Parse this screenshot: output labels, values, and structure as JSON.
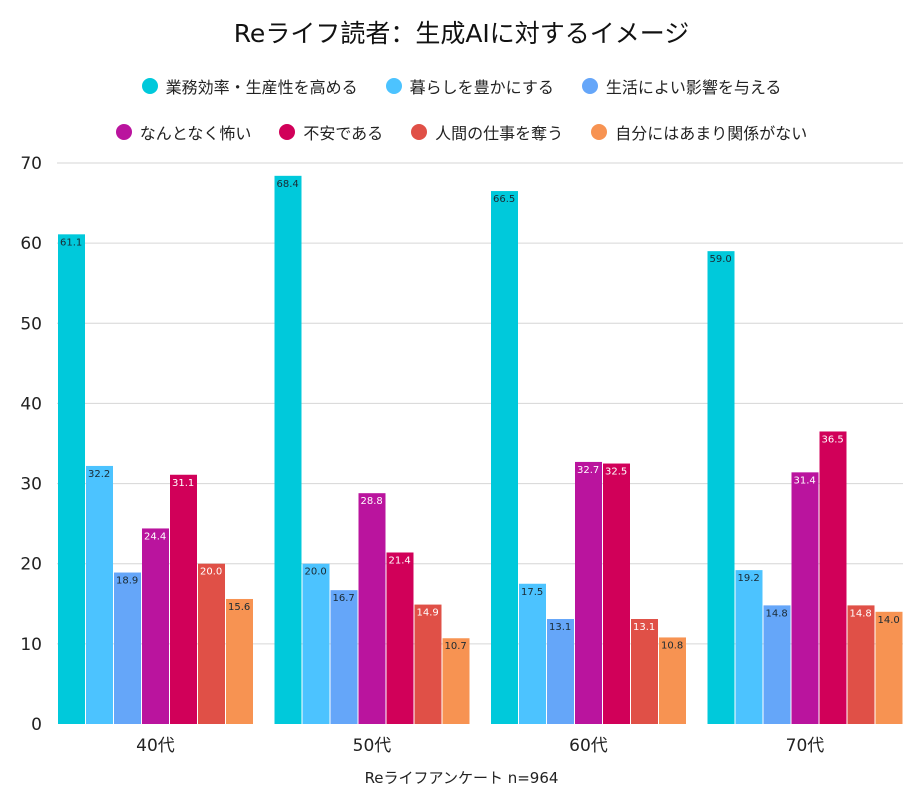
{
  "chart_data": {
    "type": "bar",
    "title": "Reライフ読者：生成AIに対するイメージ",
    "xlabel": "Reライフアンケート n=964",
    "ylabel": "",
    "ylim": [
      0,
      70
    ],
    "yticks": [
      0,
      10,
      20,
      30,
      40,
      50,
      60,
      70
    ],
    "grid": true,
    "legend_position": "top",
    "categories": [
      "40代",
      "50代",
      "60代",
      "70代"
    ],
    "series": [
      {
        "name": "業務効率・生産性を高める",
        "color": "#00C9DB",
        "label_color": "#1a2a33",
        "values": [
          61.1,
          68.4,
          66.5,
          59.0
        ]
      },
      {
        "name": "暮らしを豊かにする",
        "color": "#4CC3FF",
        "label_color": "#1a2a33",
        "values": [
          32.2,
          20.0,
          17.5,
          19.2
        ]
      },
      {
        "name": "生活によい影響を与える",
        "color": "#65A6F9",
        "label_color": "#1a2a33",
        "values": [
          18.9,
          16.7,
          13.1,
          14.8
        ]
      },
      {
        "name": "なんとなく怖い",
        "color": "#BA149E",
        "label_color": "#ffffff",
        "values": [
          24.4,
          28.8,
          32.7,
          31.4
        ]
      },
      {
        "name": "不安である",
        "color": "#D10059",
        "label_color": "#ffffff",
        "values": [
          31.1,
          21.4,
          32.5,
          36.5
        ]
      },
      {
        "name": "人間の仕事を奪う",
        "color": "#E05047",
        "label_color": "#ffffff",
        "values": [
          20.0,
          14.9,
          13.1,
          14.8
        ]
      },
      {
        "name": "自分にはあまり関係がない",
        "color": "#F79352",
        "label_color": "#1a2a33",
        "values": [
          15.6,
          10.7,
          10.8,
          14.0
        ]
      }
    ],
    "data_label_format": "0.0"
  }
}
